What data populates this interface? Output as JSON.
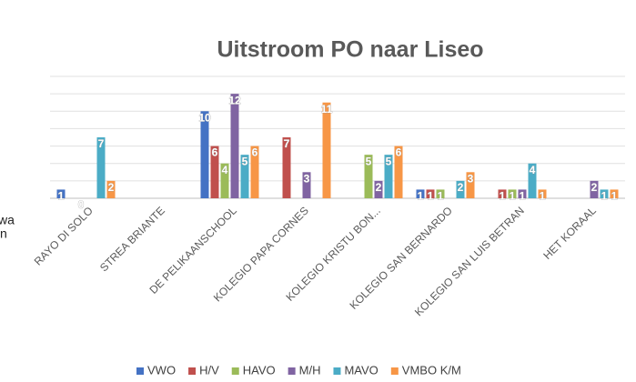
{
  "chart_data": {
    "type": "bar",
    "title": "Uitstroom PO naar Liseo",
    "categories": [
      "RAYO DI SOLO",
      "STREA BRIANTE",
      "DE PELIKAANSCHOOL",
      "KOLEGIO PAPA CORNES",
      "KOLEGIO KRISTU BON...",
      "KOLEGIO SAN BERNARDO",
      "KOLEGIO SAN LUIS BETRAN",
      "HET KORAAL"
    ],
    "series": [
      {
        "name": "VWO",
        "color": "#4472c4",
        "values": [
          1,
          null,
          10,
          null,
          null,
          1,
          null,
          null
        ]
      },
      {
        "name": "H/V",
        "color": "#c0504d",
        "values": [
          null,
          null,
          6,
          7,
          null,
          1,
          1,
          null
        ]
      },
      {
        "name": "HAVO",
        "color": "#9bbb59",
        "values": [
          0,
          null,
          4,
          null,
          5,
          1,
          1,
          null
        ]
      },
      {
        "name": "M/H",
        "color": "#8064a2",
        "values": [
          null,
          null,
          12,
          3,
          2,
          null,
          1,
          2
        ]
      },
      {
        "name": "MAVO",
        "color": "#4bacc6",
        "values": [
          7,
          null,
          5,
          null,
          5,
          2,
          4,
          1
        ]
      },
      {
        "name": "VMBO K/M",
        "color": "#f79646",
        "values": [
          2,
          null,
          6,
          11,
          6,
          3,
          1,
          1
        ]
      }
    ],
    "ylim": [
      0,
      14
    ],
    "yticks": [
      0,
      2,
      4,
      6,
      8,
      10,
      12,
      14
    ],
    "grid": true,
    "legend": "bottom",
    "background_text": [
      "wa",
      "n"
    ]
  }
}
